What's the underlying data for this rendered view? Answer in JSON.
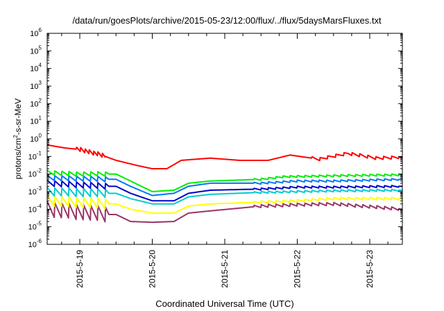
{
  "chart_data": {
    "type": "line",
    "title": "/data/run/goesPlots/archive/2015-05-23/12:00/flux/../flux/5daysMarsFluxes.txt",
    "xlabel": "Coordinated Universal Time (UTC)",
    "ylabel_pre": "protons/cm",
    "ylabel_sup": "2",
    "ylabel_post": "-s-sr-MeV",
    "yscale": "log",
    "ylim_exp": [
      -6,
      6
    ],
    "xlim_days": [
      -0.45,
      4.45
    ],
    "x_ticks": [
      {
        "label": "2015-5-19",
        "day": 0
      },
      {
        "label": "2015-5-20",
        "day": 1
      },
      {
        "label": "2015-5-21",
        "day": 2
      },
      {
        "label": "2015-5-22",
        "day": 3
      },
      {
        "label": "2015-5-23",
        "day": 4
      }
    ],
    "y_tick_exponents": [
      -6,
      -5,
      -4,
      -3,
      -2,
      -1,
      0,
      1,
      2,
      3,
      4,
      5,
      6
    ],
    "y_tick_base": "10",
    "grid": false,
    "legend": "none",
    "series": [
      {
        "color": "#ff0000",
        "base": [
          [
            -0.45,
            0.45
          ],
          [
            -0.2,
            0.3
          ],
          [
            0.0,
            0.25
          ],
          [
            0.3,
            0.12
          ],
          [
            0.5,
            0.06
          ],
          [
            0.8,
            0.03
          ],
          [
            1.0,
            0.02
          ],
          [
            1.2,
            0.02
          ],
          [
            1.4,
            0.06
          ],
          [
            1.8,
            0.08
          ],
          [
            2.2,
            0.06
          ],
          [
            2.6,
            0.06
          ],
          [
            2.9,
            0.12
          ],
          [
            3.3,
            0.07
          ],
          [
            3.7,
            0.15
          ],
          [
            4.1,
            0.08
          ],
          [
            4.45,
            0.09
          ]
        ],
        "sawtooth": [
          [
            -0.05,
            0.35,
            0.06,
            1.8
          ],
          [
            3.2,
            4.4,
            0.11,
            1.5
          ]
        ]
      },
      {
        "color": "#00ee00",
        "base": [
          [
            -0.45,
            0.012
          ],
          [
            -0.05,
            0.01
          ],
          [
            0.5,
            0.01
          ],
          [
            0.7,
            0.004
          ],
          [
            1.0,
            0.001
          ],
          [
            1.3,
            0.0012
          ],
          [
            1.5,
            0.003
          ],
          [
            1.8,
            0.004
          ],
          [
            2.5,
            0.005
          ],
          [
            2.8,
            0.007
          ],
          [
            3.5,
            0.008
          ],
          [
            4.45,
            0.009
          ]
        ],
        "sawtooth": [
          [
            -0.45,
            0.4,
            0.1,
            1.8
          ],
          [
            2.4,
            4.4,
            0.1,
            1.3
          ]
        ]
      },
      {
        "color": "#0077ff",
        "base": [
          [
            -0.45,
            0.006
          ],
          [
            0.4,
            0.005
          ],
          [
            0.5,
            0.005
          ],
          [
            0.7,
            0.002
          ],
          [
            1.0,
            0.0006
          ],
          [
            1.3,
            0.0008
          ],
          [
            1.5,
            0.002
          ],
          [
            1.8,
            0.003
          ],
          [
            2.5,
            0.003
          ],
          [
            3.0,
            0.004
          ],
          [
            3.5,
            0.004
          ],
          [
            4.45,
            0.005
          ]
        ],
        "sawtooth": [
          [
            -0.45,
            0.4,
            0.1,
            2.0
          ],
          [
            2.4,
            4.4,
            0.1,
            1.3
          ]
        ]
      },
      {
        "color": "#0000cc",
        "base": [
          [
            -0.45,
            0.003
          ],
          [
            0.4,
            0.002
          ],
          [
            0.5,
            0.002
          ],
          [
            0.7,
            0.0008
          ],
          [
            1.0,
            0.0003
          ],
          [
            1.3,
            0.0003
          ],
          [
            1.5,
            0.0008
          ],
          [
            1.8,
            0.0012
          ],
          [
            2.5,
            0.0014
          ],
          [
            3.0,
            0.0018
          ],
          [
            3.5,
            0.0018
          ],
          [
            4.45,
            0.002
          ]
        ],
        "sawtooth": [
          [
            -0.45,
            0.4,
            0.1,
            2.2
          ],
          [
            2.4,
            4.4,
            0.1,
            1.3
          ]
        ]
      },
      {
        "color": "#00cccc",
        "base": [
          [
            -0.45,
            0.001
          ],
          [
            0.4,
            0.0008
          ],
          [
            0.5,
            0.0008
          ],
          [
            0.7,
            0.0004
          ],
          [
            1.0,
            0.0002
          ],
          [
            1.3,
            0.0002
          ],
          [
            1.5,
            0.0005
          ],
          [
            1.8,
            0.0007
          ],
          [
            2.5,
            0.0009
          ],
          [
            3.0,
            0.001
          ],
          [
            3.5,
            0.0011
          ],
          [
            4.45,
            0.0012
          ]
        ],
        "sawtooth": [
          [
            -0.45,
            0.4,
            0.1,
            3.0
          ],
          [
            2.4,
            4.4,
            0.1,
            1.3
          ]
        ]
      },
      {
        "color": "#ffff00",
        "base": [
          [
            -0.45,
            0.0003
          ],
          [
            0.4,
            0.0002
          ],
          [
            0.5,
            0.0002
          ],
          [
            0.7,
            0.0001
          ],
          [
            1.0,
            6e-05
          ],
          [
            1.3,
            6e-05
          ],
          [
            1.5,
            0.00015
          ],
          [
            1.8,
            0.0002
          ],
          [
            2.5,
            0.00025
          ],
          [
            3.0,
            0.0003
          ],
          [
            3.5,
            0.0004
          ],
          [
            4.45,
            0.0004
          ]
        ],
        "sawtooth": [
          [
            -0.45,
            0.4,
            0.1,
            4.0
          ],
          [
            2.4,
            4.4,
            0.1,
            1.4
          ]
        ]
      },
      {
        "color": "#993366",
        "base": [
          [
            -0.45,
            0.0001
          ],
          [
            0.4,
            5e-05
          ],
          [
            0.5,
            5e-05
          ],
          [
            0.7,
            2e-05
          ],
          [
            1.0,
            1.8e-05
          ],
          [
            1.3,
            2e-05
          ],
          [
            1.5,
            6e-05
          ],
          [
            1.8,
            8e-05
          ],
          [
            2.5,
            0.00015
          ],
          [
            3.0,
            0.00018
          ],
          [
            3.5,
            0.0002
          ],
          [
            4.45,
            0.0001
          ]
        ],
        "sawtooth": [
          [
            -0.45,
            0.4,
            0.1,
            8.0
          ],
          [
            2.4,
            4.4,
            0.1,
            1.5
          ]
        ]
      }
    ]
  }
}
